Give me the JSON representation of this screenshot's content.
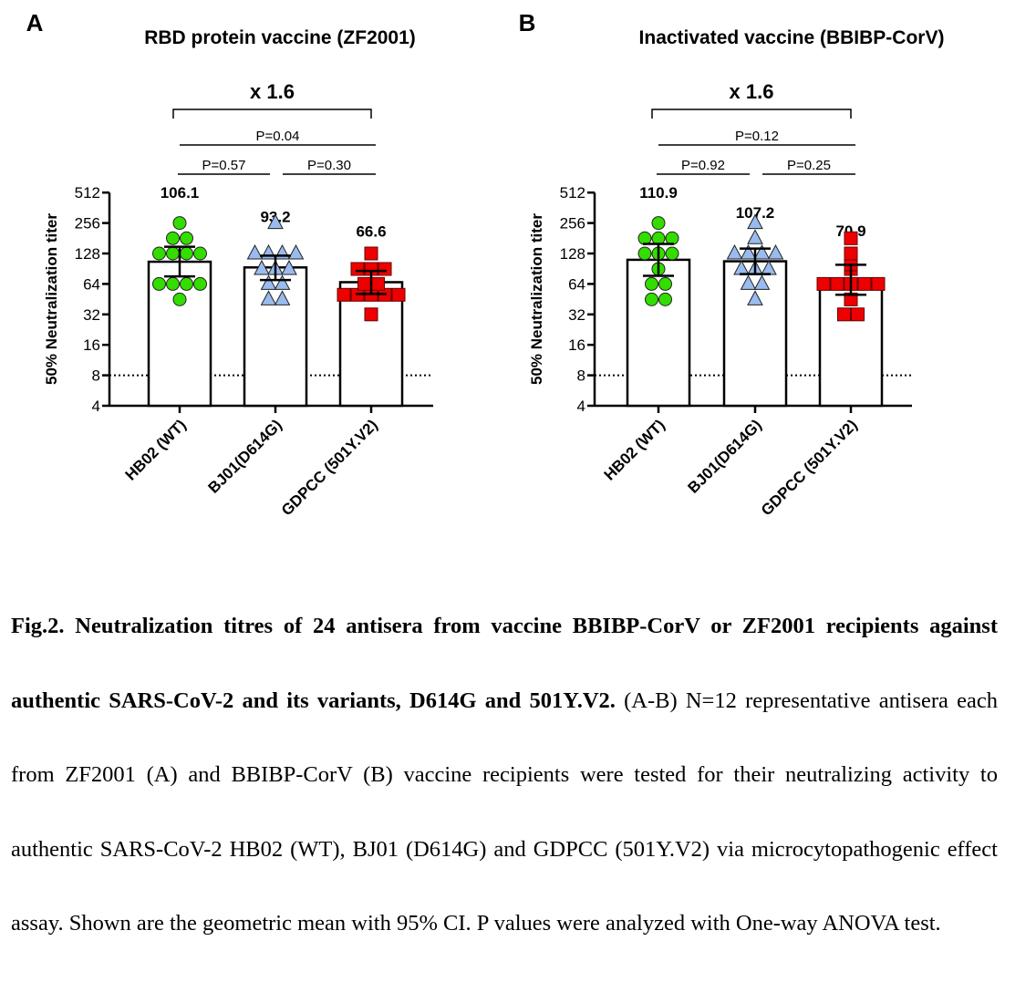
{
  "chart_data": [
    {
      "type": "bar",
      "panel_letter": "A",
      "title": "RBD protein vaccine (ZF2001)",
      "ylabel": "50% Neutralization titer",
      "yscale": "log2",
      "ylim": [
        4,
        512
      ],
      "yticks": [
        "4",
        "8",
        "16",
        "32",
        "64",
        "128",
        "256",
        "512"
      ],
      "detection_limit": 8,
      "categories": [
        "HB02 (WT)",
        "BJ01(D614G)",
        "GDPCC (501Y.V2)"
      ],
      "values": [
        106.1,
        93.2,
        66.6
      ],
      "value_labels": [
        "106.1",
        "93.2",
        "66.6"
      ],
      "ci95": [
        [
          76,
          149
        ],
        [
          70,
          122
        ],
        [
          51,
          86
        ]
      ],
      "points": [
        [
          256,
          181,
          181,
          128,
          128,
          128,
          128,
          64,
          64,
          64,
          64,
          45
        ],
        [
          256,
          128,
          128,
          128,
          128,
          90,
          90,
          90,
          64,
          64,
          45,
          45
        ],
        [
          128,
          90,
          90,
          90,
          64,
          64,
          50,
          50,
          50,
          50,
          50,
          32
        ]
      ],
      "marker_colors": [
        "#33dd00",
        "#99bbee",
        "#ee0000"
      ],
      "marker_shapes": [
        "circle",
        "triangle",
        "square"
      ],
      "fold_change": "x 1.6",
      "p_values": [
        {
          "label": "P=0.04",
          "from": 0,
          "to": 2
        },
        {
          "label": "P=0.57",
          "from": 0,
          "to": 1
        },
        {
          "label": "P=0.30",
          "from": 1,
          "to": 2
        }
      ]
    },
    {
      "type": "bar",
      "panel_letter": "B",
      "title": "Inactivated vaccine (BBIBP-CorV)",
      "ylabel": "50% Neutralization titer",
      "yscale": "log2",
      "ylim": [
        4,
        512
      ],
      "yticks": [
        "4",
        "8",
        "16",
        "32",
        "64",
        "128",
        "256",
        "512"
      ],
      "detection_limit": 8,
      "categories": [
        "HB02 (WT)",
        "BJ01(D614G)",
        "GDPCC (501Y.V2)"
      ],
      "values": [
        110.9,
        107.2,
        70.9
      ],
      "value_labels": [
        "110.9",
        "107.2",
        "70.9"
      ],
      "ci95": [
        [
          77,
          159
        ],
        [
          80,
          143
        ],
        [
          50,
          99
        ]
      ],
      "points": [
        [
          256,
          181,
          181,
          181,
          128,
          128,
          128,
          90,
          64,
          64,
          45,
          45
        ],
        [
          256,
          181,
          128,
          128,
          128,
          128,
          90,
          90,
          90,
          64,
          64,
          45
        ],
        [
          181,
          128,
          100,
          90,
          64,
          64,
          64,
          64,
          64,
          45,
          32,
          32
        ]
      ],
      "marker_colors": [
        "#33dd00",
        "#99bbee",
        "#ee0000"
      ],
      "marker_shapes": [
        "circle",
        "triangle",
        "square"
      ],
      "fold_change": "x 1.6",
      "p_values": [
        {
          "label": "P=0.12",
          "from": 0,
          "to": 2
        },
        {
          "label": "P=0.92",
          "from": 0,
          "to": 1
        },
        {
          "label": "P=0.25",
          "from": 1,
          "to": 2
        }
      ]
    }
  ],
  "caption": {
    "bold": "Fig.2. Neutralization titres of 24 antisera from vaccine BBIBP-CorV or ZF2001 recipients against authentic SARS-CoV-2 and its variants, D614G and 501Y.V2.",
    "body": " (A-B) N=12 representative antisera each from ZF2001 (A) and BBIBP-CorV (B) vaccine recipients were tested for their neutralizing activity to authentic SARS-CoV-2 HB02 (WT), BJ01 (D614G) and GDPCC (501Y.V2) via microcytopathogenic effect assay. Shown are the geometric mean with 95% CI. P values were analyzed with One-way ANOVA test."
  }
}
